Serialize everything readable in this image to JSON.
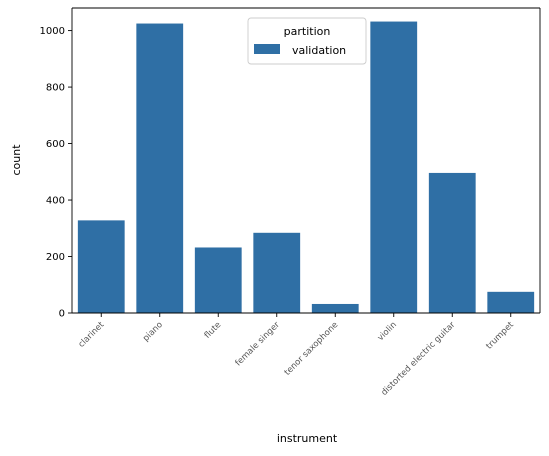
{
  "chart_data": {
    "type": "bar",
    "xlabel": "instrument",
    "ylabel": "count",
    "categories": [
      "clarinet",
      "piano",
      "flute",
      "female singer",
      "tenor saxophone",
      "violin",
      "distorted electric guitar",
      "trumpet"
    ],
    "series": [
      {
        "name": "validation",
        "values": [
          328,
          1025,
          232,
          284,
          32,
          1032,
          496,
          75
        ],
        "color": "#2f6fa5"
      }
    ],
    "ylim": [
      0,
      1080
    ],
    "yticks": [
      0,
      200,
      400,
      600,
      800,
      1000
    ],
    "grid": false,
    "legend": {
      "title": "partition",
      "placement": "top-center"
    }
  }
}
